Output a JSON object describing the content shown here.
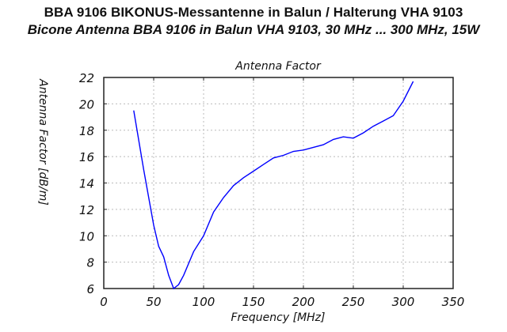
{
  "header": {
    "title_de": "BBA 9106  BIKONUS-Messantenne in Balun / Halterung VHA 9103",
    "title_en": "Bicone Antenna BBA 9106 in Balun VHA 9103, 30 MHz ... 300 MHz, 15W"
  },
  "chart_data": {
    "type": "line",
    "title": "Antenna Factor",
    "xlabel": "Frequency [MHz]",
    "ylabel": "Antenna Factor [dB/m]",
    "xlim": [
      0,
      350
    ],
    "ylim": [
      6,
      22
    ],
    "xticks": [
      0,
      50,
      100,
      150,
      200,
      250,
      300,
      350
    ],
    "yticks": [
      6,
      8,
      10,
      12,
      14,
      16,
      18,
      20,
      22
    ],
    "grid": true,
    "line_color": "#0000ff",
    "series": [
      {
        "name": "Antenna Factor",
        "x": [
          30,
          40,
          50,
          55,
          60,
          65,
          70,
          75,
          80,
          90,
          100,
          110,
          120,
          130,
          140,
          150,
          160,
          170,
          180,
          190,
          200,
          210,
          220,
          230,
          240,
          250,
          260,
          270,
          280,
          290,
          300,
          310
        ],
        "y": [
          19.5,
          15.0,
          10.8,
          9.2,
          8.4,
          7.0,
          6.0,
          6.3,
          7.0,
          8.8,
          10.0,
          11.8,
          12.9,
          13.8,
          14.4,
          14.9,
          15.4,
          15.9,
          16.1,
          16.4,
          16.5,
          16.7,
          16.9,
          17.3,
          17.5,
          17.4,
          17.8,
          18.3,
          18.7,
          19.1,
          20.2,
          21.7
        ]
      }
    ]
  }
}
